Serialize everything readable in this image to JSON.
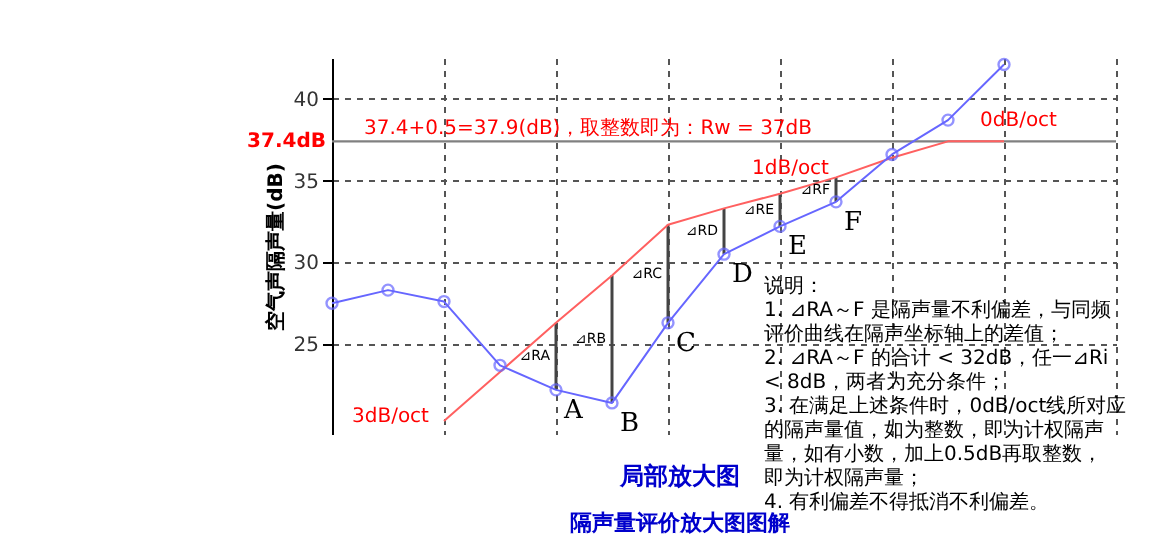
{
  "chart_data": {
    "type": "line",
    "title": "隔声量评价放大图图解",
    "subtitle": "局部放大图",
    "ylabel": "空气声隔声量(dB)",
    "categories": [
      null,
      null,
      null,
      null,
      null,
      null,
      null,
      null,
      null,
      null,
      null,
      null,
      null
    ],
    "series": [
      {
        "color": "#6666ff",
        "marker": "circle",
        "values": [
          27.5,
          28.3,
          27.6,
          23.7,
          22.2,
          21.4,
          26.3,
          30.5,
          32.2,
          33.7,
          36.6,
          38.7,
          42.1
        ]
      },
      {
        "color": "#ff6060",
        "marker": "none",
        "values": [
          null,
          null,
          20.3,
          23.3,
          26.3,
          29.2,
          32.3,
          33.3,
          34.2,
          35.2,
          36.4,
          37.4,
          37.4
        ]
      }
    ],
    "ylim": [
      19.5,
      42.5
    ],
    "yticks": [
      25,
      30,
      35,
      40
    ],
    "grid": true,
    "line_style": "solid",
    "ref_lines": [
      {
        "axis": "y",
        "value": 37.4,
        "label": "37.4dB",
        "color": "#808080"
      }
    ],
    "annotations": [
      "37.4+0.5=37.9(dB)，取整数即为：Rw = 37dB",
      "0dB/oct",
      "1dB/oct",
      "3dB/oct",
      "A",
      "B",
      "C",
      "D",
      "E",
      "F",
      "⊿RA",
      "⊿RB",
      "⊿RC",
      "⊿RD",
      "⊿RE",
      "⊿RF",
      "说明：",
      "1. ⊿RA～F 是隔声量不利偏差，与同频评价曲线在隔声坐标轴上的差值；",
      "2. ⊿RA～F 的合计 < 32dB，任一⊿Ri < 8dB，两者为充分条件；",
      "3. 在满足上述条件时，0dB/oct线所对应的隔声量值，如为整数，即为计权隔声量，如有小数，加上0.5dB再取整数，即为计权隔声量；",
      "4. 有利偏差不得抵消不利偏差。"
    ]
  }
}
